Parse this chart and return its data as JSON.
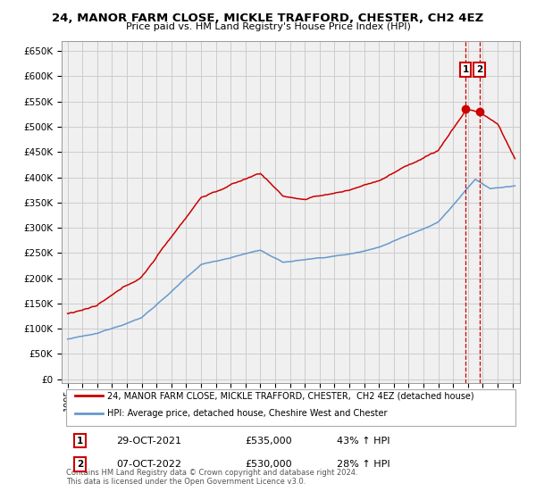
{
  "title": "24, MANOR FARM CLOSE, MICKLE TRAFFORD, CHESTER, CH2 4EZ",
  "subtitle": "Price paid vs. HM Land Registry's House Price Index (HPI)",
  "yticks": [
    0,
    50000,
    100000,
    150000,
    200000,
    250000,
    300000,
    350000,
    400000,
    450000,
    500000,
    550000,
    600000,
    650000
  ],
  "xlim_start": 1994.6,
  "xlim_end": 2025.5,
  "ylim_min": -8000,
  "ylim_max": 670000,
  "red_color": "#cc0000",
  "blue_color": "#6699cc",
  "grid_color": "#cccccc",
  "bg_color": "#f0f0f0",
  "legend_label_red": "24, MANOR FARM CLOSE, MICKLE TRAFFORD, CHESTER,  CH2 4EZ (detached house)",
  "legend_label_blue": "HPI: Average price, detached house, Cheshire West and Chester",
  "transaction1_date": 2021.83,
  "transaction1_price": 535000,
  "transaction1_label": "1",
  "transaction2_date": 2022.76,
  "transaction2_price": 530000,
  "transaction2_label": "2",
  "footer": "Contains HM Land Registry data © Crown copyright and database right 2024.\nThis data is licensed under the Open Government Licence v3.0.",
  "table_row1": [
    "1",
    "29-OCT-2021",
    "£535,000",
    "43% ↑ HPI"
  ],
  "table_row2": [
    "2",
    "07-OCT-2022",
    "£530,000",
    "28% ↑ HPI"
  ]
}
